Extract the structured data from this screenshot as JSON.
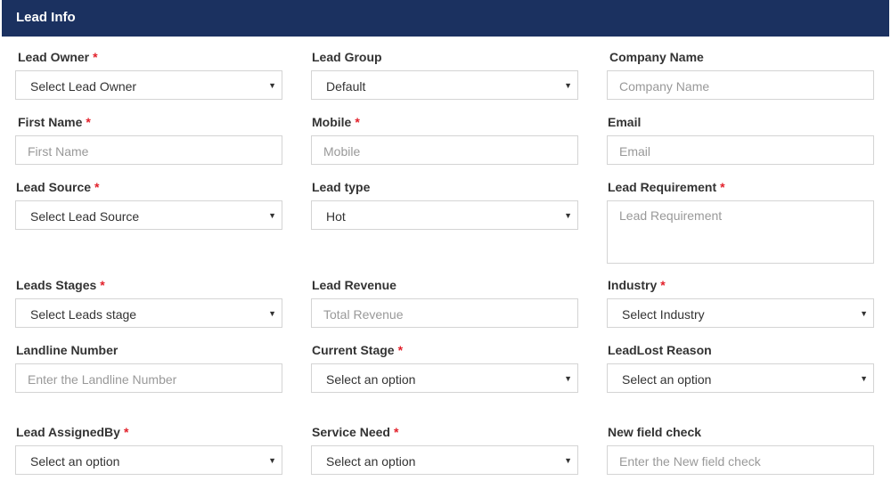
{
  "header": {
    "title": "Lead Info"
  },
  "fields": {
    "lead_owner": {
      "label": "Lead Owner",
      "required": "*",
      "value": "Select Lead Owner"
    },
    "lead_group": {
      "label": "Lead Group",
      "value": "Default"
    },
    "company_name": {
      "label": "Company Name",
      "placeholder": "Company Name"
    },
    "first_name": {
      "label": "First Name",
      "required": "*",
      "placeholder": "First Name"
    },
    "mobile": {
      "label": "Mobile",
      "required": "*",
      "placeholder": "Mobile"
    },
    "email": {
      "label": "Email",
      "placeholder": "Email"
    },
    "lead_source": {
      "label": "Lead Source",
      "required": "*",
      "value": "Select Lead Source"
    },
    "lead_type": {
      "label": "Lead type",
      "value": "Hot"
    },
    "lead_requirement": {
      "label": "Lead Requirement",
      "required": "*",
      "placeholder": "Lead Requirement"
    },
    "leads_stages": {
      "label": "Leads Stages",
      "required": "*",
      "value": "Select Leads stage"
    },
    "lead_revenue": {
      "label": "Lead Revenue",
      "placeholder": "Total Revenue"
    },
    "industry": {
      "label": "Industry",
      "required": "*",
      "value": "Select Industry"
    },
    "landline_number": {
      "label": "Landline Number",
      "placeholder": "Enter the Landline Number"
    },
    "current_stage": {
      "label": "Current Stage",
      "required": "*",
      "value": "Select an option"
    },
    "leadlost_reason": {
      "label": "LeadLost Reason",
      "value": "Select an option"
    },
    "lead_assignedby": {
      "label": "Lead AssignedBy",
      "required": "*",
      "value": "Select an option"
    },
    "service_need": {
      "label": "Service Need",
      "required": "*",
      "value": "Select an option"
    },
    "new_field_check": {
      "label": "New field check",
      "placeholder": "Enter the New field check"
    }
  },
  "icons": {
    "select_caret": "caret-down-icon"
  },
  "colors": {
    "header_bg": "#1b3160",
    "required_star": "#e2202a",
    "border": "#d4d4d4"
  }
}
